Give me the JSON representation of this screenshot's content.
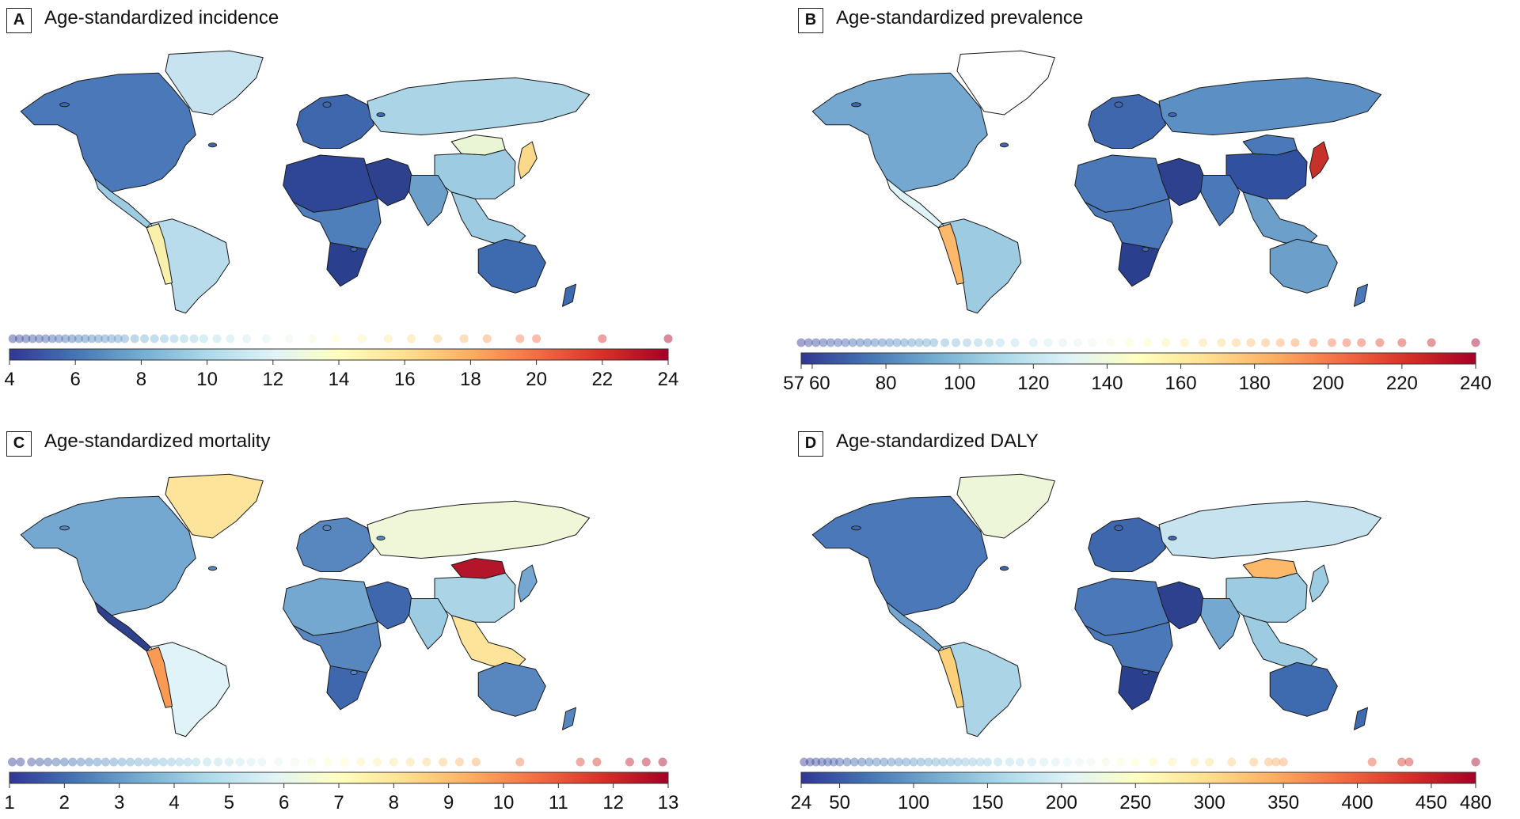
{
  "panels": [
    {
      "letter": "A",
      "title": "Age-standardized incidence",
      "scale": {
        "min": 4,
        "max": 24,
        "ticks": [
          "4",
          "6",
          "8",
          "10",
          "12",
          "14",
          "16",
          "18",
          "20",
          "22",
          "24"
        ]
      }
    },
    {
      "letter": "B",
      "title": "Age-standardized prevalence",
      "scale": {
        "min": 57,
        "max": 240,
        "ticks": [
          "57",
          "60",
          "80",
          "100",
          "120",
          "140",
          "160",
          "180",
          "200",
          "220",
          "240"
        ]
      }
    },
    {
      "letter": "C",
      "title": "Age-standardized mortality",
      "scale": {
        "min": 1,
        "max": 13,
        "ticks": [
          "1",
          "2",
          "3",
          "4",
          "5",
          "6",
          "7",
          "8",
          "9",
          "10",
          "11",
          "12",
          "13"
        ]
      }
    },
    {
      "letter": "D",
      "title": "Age-standardized DALY",
      "scale": {
        "min": 24,
        "max": 480,
        "ticks": [
          "24",
          "50",
          "100",
          "150",
          "200",
          "250",
          "300",
          "350",
          "400",
          "450",
          "480"
        ]
      }
    }
  ],
  "colors": {
    "scale_stops": [
      "#313695",
      "#4575b4",
      "#74add1",
      "#abd9e9",
      "#e0f3f8",
      "#ffffbf",
      "#fee090",
      "#fdae61",
      "#f46d43",
      "#d73027",
      "#a50026"
    ],
    "ocean": "#ffffff",
    "border": "#1a1a1a"
  },
  "region_colors": {
    "A": {
      "northamerica": "#4a78b8",
      "greenland": "#c7e3ef",
      "centralamerica": "#9ccbe2",
      "southamerica": "#b9dcec",
      "andes": "#f9f1ab",
      "europe": "#3e67ae",
      "northafrica": "#2f4596",
      "subsaharan": "#4f7fba",
      "southafrica": "#2b3f8f",
      "russia": "#abd4e7",
      "mongolia": "#eaf5d6",
      "china": "#9ccbe2",
      "india": "#6d9fcb",
      "middleeast": "#2d418f",
      "japan": "#fbd98a",
      "seasia": "#9ccbe2",
      "australia": "#3e6bb0",
      "nz": "#3e6bb0"
    },
    "B": {
      "northamerica": "#74a8d1",
      "greenland": "#ffffff",
      "centralamerica": "#e0f3f8",
      "southamerica": "#9ccbe2",
      "andes": "#fdb86a",
      "europe": "#3e67ae",
      "northafrica": "#4a78b8",
      "subsaharan": "#4a78b8",
      "southafrica": "#2b3f8f",
      "russia": "#5c8fc3",
      "mongolia": "#4a78b8",
      "china": "#3150a0",
      "india": "#4a78b8",
      "middleeast": "#2d418f",
      "japan": "#c8302a",
      "seasia": "#6d9fcb",
      "australia": "#6d9fcb",
      "nz": "#4a78b8"
    },
    "C": {
      "northamerica": "#74a8d1",
      "greenland": "#fde49a",
      "centralamerica": "#2d418f",
      "southamerica": "#e0f3f8",
      "andes": "#fa9a55",
      "europe": "#5887c0",
      "northafrica": "#74a8d1",
      "subsaharan": "#5887c0",
      "southafrica": "#3e67ae",
      "russia": "#f0f7d8",
      "mongolia": "#b3162a",
      "china": "#abd4e7",
      "india": "#9ccbe2",
      "middleeast": "#3e67ae",
      "japan": "#74a8d1",
      "seasia": "#fde49a",
      "australia": "#5887c0",
      "nz": "#5887c0"
    },
    "D": {
      "northamerica": "#4a78b8",
      "greenland": "#edf6d8",
      "centralamerica": "#74a8d1",
      "southamerica": "#abd4e7",
      "andes": "#fdd07a",
      "europe": "#3e67ae",
      "northafrica": "#4a78b8",
      "subsaharan": "#4a78b8",
      "southafrica": "#2b3f8f",
      "russia": "#c7e3ef",
      "mongolia": "#fdb86a",
      "china": "#9ccbe2",
      "india": "#74a8d1",
      "middleeast": "#2d418f",
      "japan": "#9ccbe2",
      "seasia": "#9ccbe2",
      "australia": "#3e6bb0",
      "nz": "#3e6bb0"
    }
  },
  "dot_values": {
    "A": [
      4.1,
      4.3,
      4.5,
      4.7,
      4.9,
      5.1,
      5.3,
      5.5,
      5.7,
      5.9,
      6.1,
      6.3,
      6.5,
      6.7,
      6.9,
      7.1,
      7.3,
      7.5,
      7.8,
      8.1,
      8.4,
      8.7,
      9.0,
      9.3,
      9.6,
      9.9,
      10.3,
      10.7,
      11.2,
      11.8,
      12.5,
      13.2,
      13.9,
      14.7,
      15.5,
      16.2,
      17.0,
      17.8,
      18.5,
      19.5,
      20.0,
      22.0,
      24.0
    ],
    "B": [
      57,
      59,
      61,
      63,
      65,
      67,
      69,
      71,
      73,
      75,
      77,
      79,
      81,
      83,
      85,
      87,
      89,
      91,
      93,
      96,
      99,
      102,
      105,
      108,
      111,
      115,
      120,
      124,
      128,
      132,
      136,
      141,
      146,
      151,
      156,
      161,
      166,
      171,
      175,
      179,
      183,
      187,
      191,
      196,
      201,
      205,
      209,
      214,
      220,
      228,
      240
    ],
    "C": [
      1.05,
      1.2,
      1.4,
      1.55,
      1.7,
      1.85,
      2.0,
      2.15,
      2.3,
      2.45,
      2.6,
      2.75,
      2.9,
      3.05,
      3.2,
      3.35,
      3.5,
      3.65,
      3.8,
      3.95,
      4.1,
      4.25,
      4.4,
      4.6,
      4.8,
      5.0,
      5.2,
      5.4,
      5.6,
      5.9,
      6.2,
      6.5,
      6.8,
      7.1,
      7.4,
      7.7,
      8.0,
      8.3,
      8.6,
      8.9,
      9.2,
      9.5,
      10.3,
      11.4,
      11.7,
      12.3,
      12.6,
      12.9
    ],
    "D": [
      26,
      30,
      34,
      38,
      42,
      46,
      50,
      55,
      60,
      65,
      70,
      75,
      80,
      85,
      90,
      95,
      100,
      105,
      110,
      115,
      120,
      125,
      130,
      135,
      140,
      145,
      150,
      157,
      165,
      172,
      180,
      188,
      196,
      204,
      212,
      220,
      230,
      240,
      250,
      262,
      275,
      290,
      300,
      315,
      330,
      340,
      345,
      350,
      410,
      430,
      435,
      480
    ]
  }
}
